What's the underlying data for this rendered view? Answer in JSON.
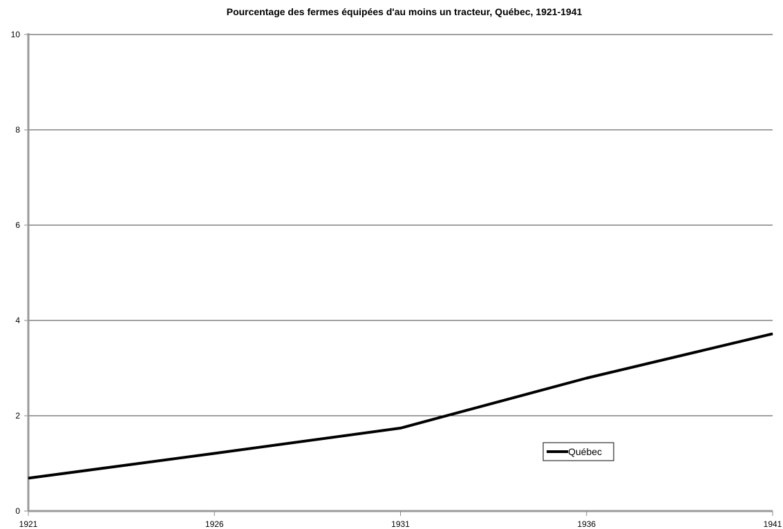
{
  "chart_data": {
    "type": "line",
    "title": "Pourcentage des fermes équipées d'au moins un tracteur, Québec, 1921-1941",
    "xlabel": "",
    "ylabel": "",
    "x": [
      1921,
      1926,
      1931,
      1936,
      1941
    ],
    "series": [
      {
        "name": "Québec",
        "values": [
          0.69,
          1.21,
          1.74,
          2.79,
          3.72
        ],
        "color": "#000000"
      }
    ],
    "xlim": [
      1921,
      1941
    ],
    "ylim": [
      0,
      10
    ],
    "x_ticks": [
      "1921",
      "1926",
      "1931",
      "1936",
      "1941"
    ],
    "y_ticks": [
      "0",
      "2",
      "4",
      "6",
      "8",
      "10"
    ],
    "grid": "horizontal",
    "legend_position": "inside-lower-right"
  }
}
